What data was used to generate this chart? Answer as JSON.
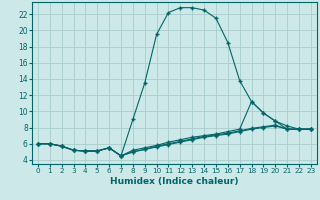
{
  "xlabel": "Humidex (Indice chaleur)",
  "background_color": "#cde8e8",
  "grid_color": "#aacccc",
  "line_color": "#006666",
  "xlim": [
    -0.5,
    23.5
  ],
  "ylim": [
    3.5,
    23.5
  ],
  "yticks": [
    4,
    6,
    8,
    10,
    12,
    14,
    16,
    18,
    20,
    22
  ],
  "xticks": [
    0,
    1,
    2,
    3,
    4,
    5,
    6,
    7,
    8,
    9,
    10,
    11,
    12,
    13,
    14,
    15,
    16,
    17,
    18,
    19,
    20,
    21,
    22,
    23
  ],
  "line1_x": [
    0,
    1,
    2,
    3,
    4,
    5,
    6,
    7,
    8,
    9,
    10,
    11,
    12,
    13,
    14,
    15,
    16,
    17,
    18,
    19,
    20,
    21,
    22,
    23
  ],
  "line1_y": [
    6.0,
    6.0,
    5.7,
    5.2,
    5.1,
    5.1,
    5.5,
    4.5,
    9.0,
    13.5,
    19.5,
    22.2,
    22.8,
    22.8,
    22.5,
    21.5,
    18.5,
    13.8,
    11.2,
    9.8,
    8.8,
    7.8,
    7.8,
    7.8
  ],
  "line2_x": [
    0,
    1,
    2,
    3,
    4,
    5,
    6,
    7,
    8,
    9,
    10,
    11,
    12,
    13,
    14,
    15,
    16,
    17,
    18,
    19,
    20,
    21,
    22,
    23
  ],
  "line2_y": [
    6.0,
    6.0,
    5.7,
    5.2,
    5.1,
    5.1,
    5.5,
    4.5,
    5.2,
    5.5,
    5.8,
    6.2,
    6.5,
    6.8,
    7.0,
    7.2,
    7.5,
    7.8,
    11.2,
    9.8,
    8.8,
    8.2,
    7.8,
    7.8
  ],
  "line3_x": [
    0,
    1,
    2,
    3,
    4,
    5,
    6,
    7,
    8,
    9,
    10,
    11,
    12,
    13,
    14,
    15,
    16,
    17,
    18,
    19,
    20,
    21,
    22,
    23
  ],
  "line3_y": [
    6.0,
    6.0,
    5.7,
    5.2,
    5.1,
    5.1,
    5.5,
    4.5,
    5.0,
    5.3,
    5.7,
    6.0,
    6.3,
    6.6,
    6.9,
    7.1,
    7.3,
    7.6,
    7.9,
    8.1,
    8.3,
    7.8,
    7.8,
    7.8
  ],
  "line4_x": [
    0,
    1,
    2,
    3,
    4,
    5,
    6,
    7,
    8,
    9,
    10,
    11,
    12,
    13,
    14,
    15,
    16,
    17,
    18,
    19,
    20,
    21,
    22,
    23
  ],
  "line4_y": [
    6.0,
    6.0,
    5.7,
    5.2,
    5.1,
    5.1,
    5.5,
    4.5,
    5.0,
    5.3,
    5.6,
    5.9,
    6.2,
    6.5,
    6.8,
    7.0,
    7.2,
    7.5,
    7.8,
    8.0,
    8.2,
    7.8,
    7.8,
    7.8
  ]
}
